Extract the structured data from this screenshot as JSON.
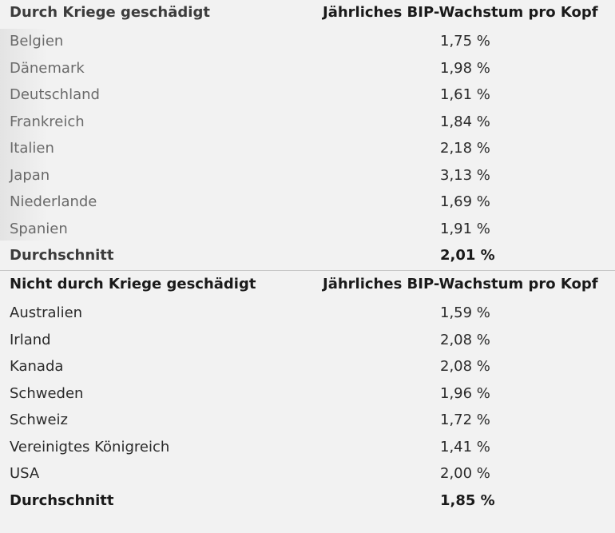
{
  "tables": {
    "war_damaged": {
      "header": {
        "country_label": "Durch Kriege geschädigt",
        "value_label": "Jährliches BIP-Wachstum pro Kopf"
      },
      "rows": [
        {
          "country": "Belgien",
          "value": "1,75 %"
        },
        {
          "country": "Dänemark",
          "value": "1,98 %"
        },
        {
          "country": "Deutschland",
          "value": "1,61 %"
        },
        {
          "country": "Frankreich",
          "value": "1,84 %"
        },
        {
          "country": "Italien",
          "value": "2,18 %"
        },
        {
          "country": "Japan",
          "value": "3,13 %"
        },
        {
          "country": "Niederlande",
          "value": "1,69 %"
        },
        {
          "country": "Spanien",
          "value": "1,91 %"
        }
      ],
      "average": {
        "label": "Durchschnitt",
        "value": "2,01 %"
      }
    },
    "not_war_damaged": {
      "header": {
        "country_label": "Nicht durch Kriege geschädigt",
        "value_label": "Jährliches BIP-Wachstum pro Kopf"
      },
      "rows": [
        {
          "country": "Australien",
          "value": "1,59 %"
        },
        {
          "country": "Irland",
          "value": "2,08 %"
        },
        {
          "country": "Kanada",
          "value": "2,08 %"
        },
        {
          "country": "Schweden",
          "value": "1,96 %"
        },
        {
          "country": "Schweiz",
          "value": "1,72 %"
        },
        {
          "country": "Vereinigtes Königreich",
          "value": "1,41 %"
        },
        {
          "country": "USA",
          "value": "2,00 %"
        }
      ],
      "average": {
        "label": "Durchschnitt",
        "value": "1,85 %"
      }
    }
  },
  "colors": {
    "background": "#f2f2f2",
    "text": "#2a2a2a",
    "bold_text": "#1a1a1a"
  }
}
